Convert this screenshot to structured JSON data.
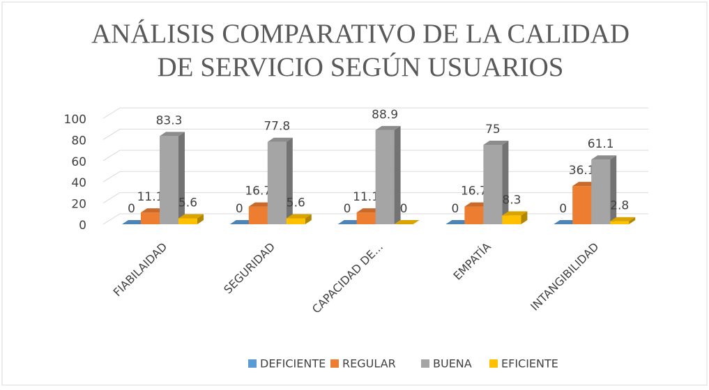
{
  "chart_data": {
    "type": "bar3d",
    "title": [
      "ANÁLISIS COMPARATIVO DE LA CALIDAD",
      "DE SERVICIO SEGÚN USUARIOS"
    ],
    "categories": [
      "FIABILAIDAD",
      "SEGURIDAD",
      "CAPACIDAD DE...",
      "EMPATÍA",
      "INTANGIBILIDAD"
    ],
    "series": [
      {
        "name": "DEFICIENTE",
        "color": "#5b9bd5",
        "values": [
          0,
          0,
          0,
          0,
          0
        ]
      },
      {
        "name": "REGULAR",
        "color": "#ed7d31",
        "values": [
          11.1,
          16.7,
          11.1,
          16.7,
          36.1
        ]
      },
      {
        "name": "BUENA",
        "color": "#a5a5a5",
        "values": [
          83.3,
          77.8,
          88.9,
          75,
          61.1
        ]
      },
      {
        "name": "EFICIENTE",
        "color": "#ffc000",
        "values": [
          5.6,
          5.6,
          0,
          8.3,
          2.8
        ]
      }
    ],
    "ylim": [
      0,
      100
    ],
    "yticks": [
      0,
      20,
      40,
      60,
      80,
      100
    ],
    "grid": true,
    "legend": "bottom"
  }
}
